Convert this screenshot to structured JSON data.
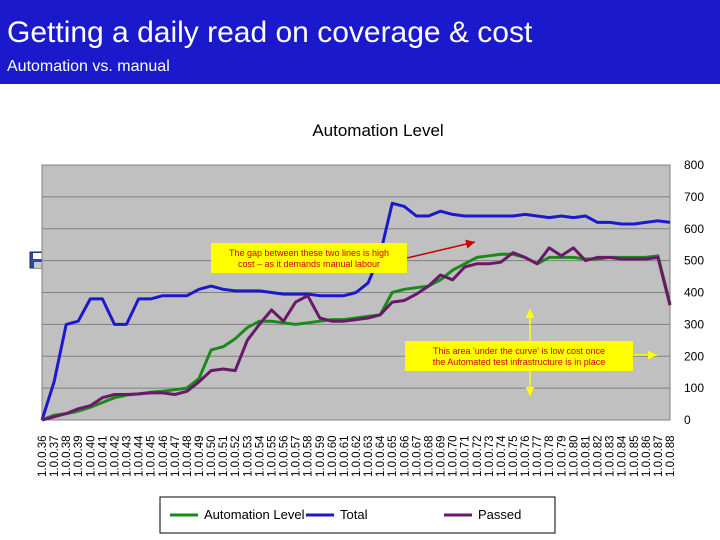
{
  "slide": {
    "title": "Getting a daily read on coverage & cost",
    "subtitle": "Automation vs. manual"
  },
  "colors": {
    "header_bg": "#1a1acc",
    "plot_bg": "#c0c0c0",
    "automation_level": "#1a8a1a",
    "total": "#1a1acc",
    "passed": "#6a186a",
    "callout_bg": "#ffff00",
    "callout_text": "#cc0000",
    "arrow": "#cc0000",
    "arrow_yellow": "#ffff00"
  },
  "toolbar": {
    "icons": [
      "save-icon",
      "print-icon",
      "email-icon",
      "export-icon"
    ]
  },
  "callouts": {
    "gap": "The gap between these two lines is high cost – as it demands manual labour",
    "curve": "This area 'under the curve' is low cost once the Automated test infrastructure is in place"
  },
  "chart_data": {
    "type": "line",
    "title": "Automation Level",
    "ylim": [
      0,
      800
    ],
    "yticks": [
      "0",
      "100",
      "200",
      "300",
      "400",
      "500",
      "600",
      "700",
      "800"
    ],
    "grid": "horizontal",
    "legend_position": "bottom",
    "categories": [
      "1.0.0.36",
      "1.0.0.37",
      "1.0.0.38",
      "1.0.0.39",
      "1.0.0.40",
      "1.0.0.41",
      "1.0.0.42",
      "1.0.0.43",
      "1.0.0.44",
      "1.0.0.45",
      "1.0.0.46",
      "1.0.0.47",
      "1.0.0.48",
      "1.0.0.49",
      "1.0.0.50",
      "1.0.0.51",
      "1.0.0.52",
      "1.0.0.53",
      "1.0.0.54",
      "1.0.0.55",
      "1.0.0.56",
      "1.0.0.57",
      "1.0.0.58",
      "1.0.0.59",
      "1.0.0.60",
      "1.0.0.61",
      "1.0.0.62",
      "1.0.0.63",
      "1.0.0.64",
      "1.0.0.65",
      "1.0.0.66",
      "1.0.0.67",
      "1.0.0.68",
      "1.0.0.69",
      "1.0.0.70",
      "1.0.0.71",
      "1.0.0.72",
      "1.0.0.73",
      "1.0.0.74",
      "1.0.0.75",
      "1.0.0.76",
      "1.0.0.77",
      "1.0.0.78",
      "1.0.0.79",
      "1.0.0.80",
      "1.0.0.81",
      "1.0.0.82",
      "1.0.0.83",
      "1.0.0.84",
      "1.0.0.85",
      "1.0.0.86",
      "1.0.0.87",
      "1.0.0.88"
    ],
    "series": [
      {
        "name": "Automation Level",
        "values": [
          0,
          15,
          20,
          28,
          40,
          55,
          70,
          78,
          82,
          87,
          90,
          95,
          100,
          130,
          220,
          230,
          255,
          290,
          310,
          310,
          305,
          300,
          305,
          310,
          315,
          315,
          320,
          325,
          330,
          400,
          410,
          415,
          420,
          440,
          470,
          490,
          510,
          515,
          520,
          520,
          510,
          490,
          510,
          510,
          510,
          505,
          505,
          510,
          510,
          510,
          510,
          515,
          365
        ]
      },
      {
        "name": "Total",
        "values": [
          0,
          120,
          300,
          310,
          380,
          380,
          300,
          300,
          380,
          380,
          390,
          390,
          390,
          410,
          420,
          410,
          405,
          405,
          405,
          400,
          395,
          395,
          395,
          390,
          390,
          390,
          400,
          430,
          520,
          680,
          670,
          640,
          640,
          655,
          645,
          640,
          640,
          640,
          640,
          640,
          645,
          640,
          635,
          640,
          635,
          640,
          620,
          620,
          615,
          615,
          620,
          625,
          620
        ]
      },
      {
        "name": "Passed",
        "values": [
          0,
          10,
          20,
          35,
          45,
          70,
          80,
          80,
          82,
          85,
          85,
          80,
          90,
          120,
          155,
          160,
          155,
          250,
          300,
          345,
          310,
          370,
          390,
          320,
          310,
          310,
          315,
          320,
          330,
          370,
          375,
          395,
          420,
          455,
          440,
          480,
          490,
          490,
          495,
          525,
          510,
          490,
          540,
          515,
          540,
          500,
          510,
          510,
          505,
          505,
          505,
          510,
          360
        ]
      }
    ]
  }
}
